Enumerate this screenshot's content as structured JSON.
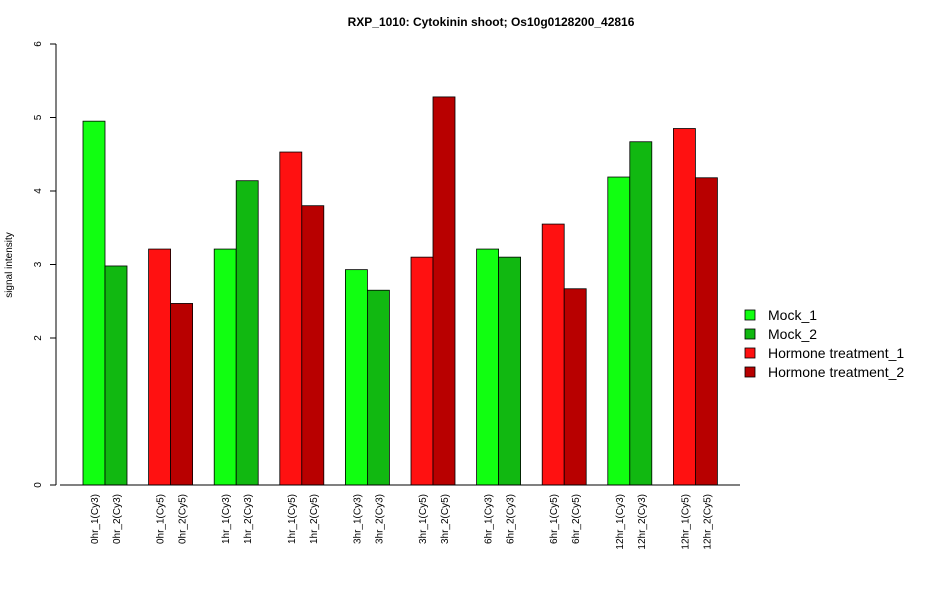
{
  "chart_data": {
    "type": "bar",
    "title": "RXP_1010: Cytokinin shoot; Os10g0128200_42816",
    "xlabel": "",
    "ylabel": "signal intensity",
    "y_ticks": [
      0,
      2,
      3,
      4,
      5,
      6
    ],
    "ylim": [
      0,
      6
    ],
    "grid": false,
    "legend_position": "right",
    "categories": [
      "0hr_1(Cy3)",
      "0hr_2(Cy3)",
      "0hr_1(Cy5)",
      "0hr_2(Cy5)",
      "1hr_1(Cy3)",
      "1hr_2(Cy3)",
      "1hr_1(Cy5)",
      "1hr_2(Cy5)",
      "3hr_1(Cy3)",
      "3hr_2(Cy3)",
      "3hr_1(Cy5)",
      "3hr_2(Cy5)",
      "6hr_1(Cy3)",
      "6hr_2(Cy3)",
      "6hr_1(Cy5)",
      "6hr_2(Cy5)",
      "12hr_1(Cy3)",
      "12hr_2(Cy3)",
      "12hr_1(Cy5)",
      "12hr_2(Cy5)"
    ],
    "values": [
      4.95,
      2.98,
      3.21,
      2.47,
      3.21,
      4.14,
      4.53,
      3.8,
      2.93,
      2.65,
      3.1,
      5.28,
      3.21,
      3.1,
      3.55,
      2.67,
      4.19,
      4.67,
      4.85,
      4.18
    ],
    "bar_series": [
      "Mock_1",
      "Mock_2",
      "Hormone treatment_1",
      "Hormone treatment_2",
      "Mock_1",
      "Mock_2",
      "Hormone treatment_1",
      "Hormone treatment_2",
      "Mock_1",
      "Mock_2",
      "Hormone treatment_1",
      "Hormone treatment_2",
      "Mock_1",
      "Mock_2",
      "Hormone treatment_1",
      "Hormone treatment_2",
      "Mock_1",
      "Mock_2",
      "Hormone treatment_1",
      "Hormone treatment_2"
    ],
    "legend": [
      {
        "name": "Mock_1",
        "color": "#11ff11"
      },
      {
        "name": "Mock_2",
        "color": "#11b811"
      },
      {
        "name": "Hormone treatment_1",
        "color": "#ff1111"
      },
      {
        "name": "Hormone treatment_2",
        "color": "#b80000"
      }
    ]
  }
}
